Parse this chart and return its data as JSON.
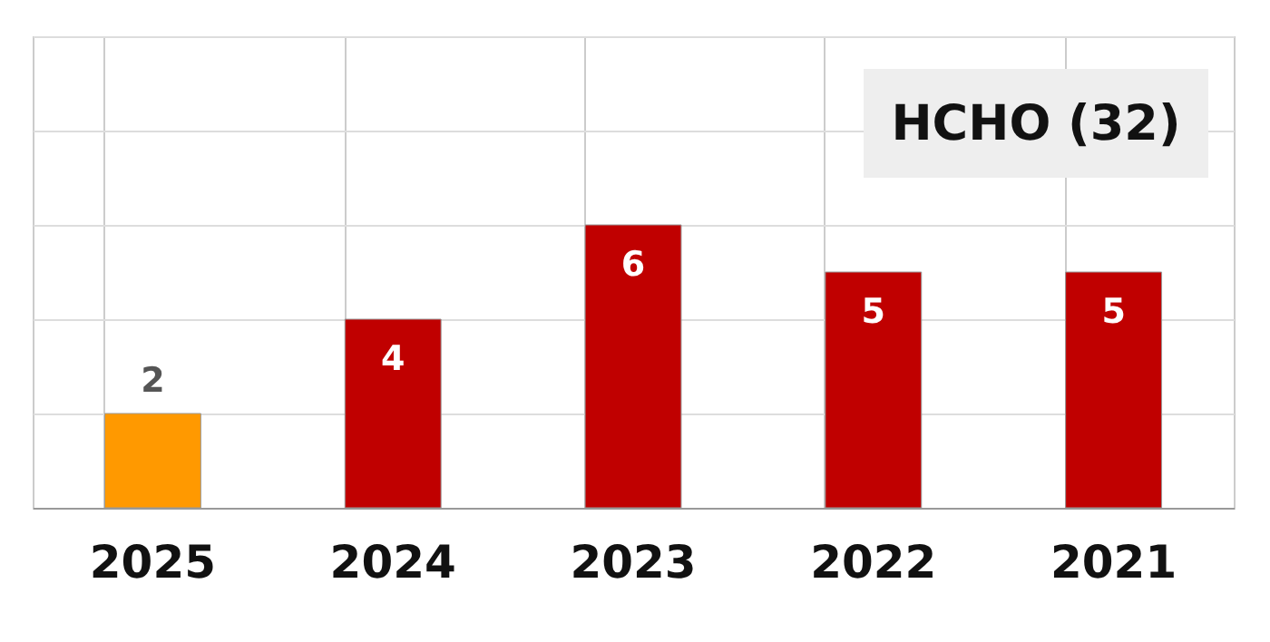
{
  "chart_data": {
    "type": "bar",
    "categories": [
      "2025",
      "2024",
      "2023",
      "2022",
      "2021"
    ],
    "values": [
      2,
      4,
      6,
      5,
      5
    ],
    "colors": [
      "#ff9900",
      "#c00000",
      "#c00000",
      "#c00000",
      "#c00000"
    ],
    "ylim": [
      0,
      10
    ],
    "yticks": [
      {
        "value": 0,
        "label": null
      },
      {
        "value": 2,
        "label": null
      },
      {
        "value": 4,
        "label": null
      },
      {
        "value": 6,
        "label": null
      },
      {
        "value": 8,
        "label": null
      },
      {
        "value": 10,
        "label": null
      }
    ],
    "tick_labels": "x",
    "grid": true,
    "data_labels": true,
    "annotations": [
      "HCHO (32)"
    ]
  }
}
